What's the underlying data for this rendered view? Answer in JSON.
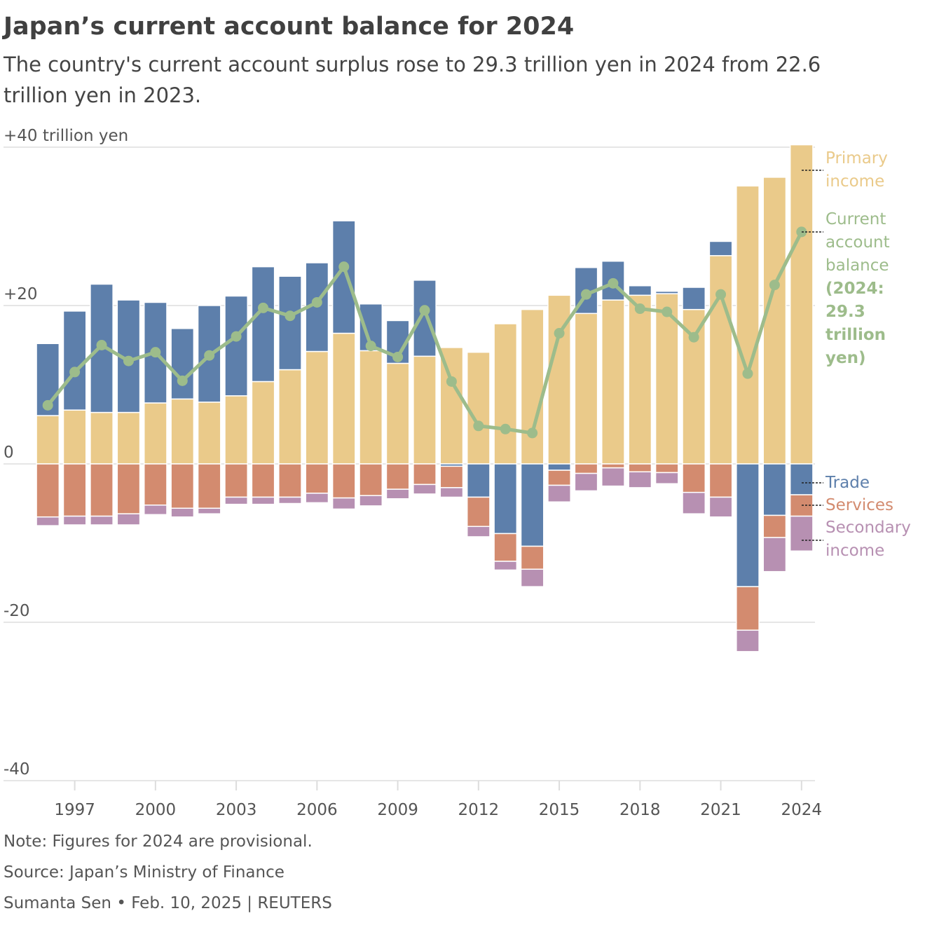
{
  "chart_data": {
    "type": "bar",
    "title": "Japan’s current account balance for 2024",
    "subtitle": "The country's current account surplus rose to 29.3 trillion yen in 2024 from 22.6 trillion yen in 2023.",
    "x": [
      1996,
      1997,
      1998,
      1999,
      2000,
      2001,
      2002,
      2003,
      2004,
      2005,
      2006,
      2007,
      2008,
      2009,
      2010,
      2011,
      2012,
      2013,
      2014,
      2015,
      2016,
      2017,
      2018,
      2019,
      2020,
      2021,
      2022,
      2023,
      2024
    ],
    "xlim": [
      1995.5,
      2024.5
    ],
    "xticks": [
      1997,
      2000,
      2003,
      2006,
      2009,
      2012,
      2015,
      2018,
      2021,
      2024
    ],
    "ylim": [
      -40,
      40
    ],
    "yticks": [
      {
        "value": -40,
        "label": "-40"
      },
      {
        "value": -20,
        "label": "-20"
      },
      0,
      {
        "value": 20,
        "label": "+20"
      },
      {
        "value": 40,
        "label": "+40 trillion yen"
      }
    ],
    "grid": true,
    "stacked": true,
    "series": [
      {
        "name": "Primary income",
        "color": "#eaca8a",
        "values": [
          6.1,
          6.8,
          6.5,
          6.5,
          7.7,
          8.2,
          7.8,
          8.6,
          10.4,
          11.9,
          14.2,
          16.5,
          14.3,
          12.7,
          13.6,
          14.7,
          14.1,
          17.7,
          19.5,
          21.3,
          19.0,
          20.7,
          21.3,
          21.5,
          19.5,
          26.3,
          35.1,
          36.2,
          40.3
        ]
      },
      {
        "name": "Trade",
        "color": "#5d7fab",
        "values": [
          9.1,
          12.5,
          16.2,
          14.2,
          12.7,
          8.9,
          12.2,
          12.6,
          14.5,
          11.8,
          11.2,
          14.2,
          5.9,
          5.4,
          9.6,
          -0.3,
          -4.2,
          -8.8,
          -10.4,
          -0.8,
          5.8,
          4.9,
          1.2,
          0.3,
          2.8,
          1.8,
          -15.5,
          -6.5,
          -3.9
        ]
      },
      {
        "name": "Services",
        "color": "#d38b6f",
        "values": [
          -6.7,
          -6.6,
          -6.6,
          -6.3,
          -5.2,
          -5.6,
          -5.6,
          -4.2,
          -4.2,
          -4.2,
          -3.7,
          -4.3,
          -4.0,
          -3.2,
          -2.6,
          -2.7,
          -3.7,
          -3.5,
          -2.9,
          -1.9,
          -1.2,
          -0.5,
          -1.0,
          -1.1,
          -3.6,
          -4.2,
          -5.5,
          -2.8,
          -2.7
        ]
      },
      {
        "name": "Secondary income",
        "color": "#b790b2",
        "values": [
          -1.1,
          -1.1,
          -1.1,
          -1.4,
          -1.2,
          -1.1,
          -0.7,
          -0.9,
          -0.9,
          -0.8,
          -1.2,
          -1.4,
          -1.3,
          -1.2,
          -1.2,
          -1.2,
          -1.3,
          -1.1,
          -2.2,
          -2.1,
          -2.2,
          -2.3,
          -2.0,
          -1.4,
          -2.7,
          -2.5,
          -2.7,
          -4.3,
          -4.4
        ]
      },
      {
        "name": "Current account balance",
        "type": "line",
        "color": "#9dbc8b",
        "values": [
          7.4,
          11.6,
          15.0,
          13.0,
          14.1,
          10.5,
          13.7,
          16.1,
          19.7,
          18.7,
          20.4,
          24.9,
          14.9,
          13.5,
          19.4,
          10.4,
          4.8,
          4.4,
          3.9,
          16.5,
          21.4,
          22.8,
          19.6,
          19.2,
          16.0,
          21.4,
          11.4,
          22.6,
          29.3
        ]
      }
    ],
    "annotation": "(2024: 29.3 trillion yen)",
    "notes": [
      "Note: Figures for 2024 are provisional.",
      "Source: Japan’s Ministry of Finance",
      "Sumanta Sen • Feb. 10, 2025 | REUTERS"
    ]
  }
}
